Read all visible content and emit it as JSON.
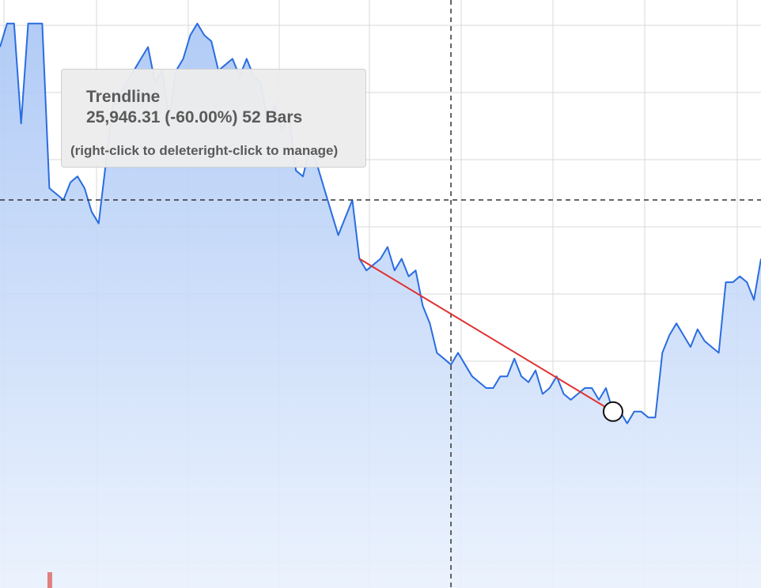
{
  "chart_data": {
    "type": "area",
    "color_line": "#2a6de0",
    "color_fill_top": "#a9c6f5",
    "color_fill_bottom": "#e9f1fd",
    "y_direction": "high at top",
    "series": [
      {
        "values": [
          92,
          96,
          96,
          79,
          96,
          96,
          96,
          68,
          67,
          66,
          69,
          70,
          68,
          64,
          62,
          72,
          82,
          84,
          86,
          88,
          90,
          92,
          86,
          88,
          80,
          88,
          90,
          94,
          96,
          94,
          93,
          88,
          89,
          90,
          87,
          90,
          87,
          86,
          79,
          82,
          78,
          80,
          71,
          70,
          75,
          72,
          68,
          64,
          60,
          63,
          66,
          56,
          54,
          55,
          56,
          58,
          54,
          56,
          53,
          54,
          48,
          45,
          40,
          39,
          38,
          40,
          38,
          36,
          35,
          34,
          34,
          36,
          36,
          39,
          36,
          35,
          37,
          33,
          34,
          36,
          33,
          32,
          33,
          34,
          34,
          32,
          34,
          30,
          30,
          28,
          30,
          30,
          29,
          29,
          40,
          43,
          45,
          43,
          41,
          44,
          42,
          41,
          40,
          52,
          52,
          53,
          52,
          49,
          56
        ]
      }
    ],
    "trendline": {
      "label": "Trendline",
      "value_text": "25,946.31 (-60.00%) 52 Bars",
      "hint": "(right-click to deleteright-click to manage)",
      "color": "#e03030",
      "start_index": 51,
      "end_index": 87,
      "end_value": 30
    },
    "crosshair": {
      "index": 64,
      "value": 66
    },
    "volume_marker_color": "#e08080",
    "grid": true
  }
}
